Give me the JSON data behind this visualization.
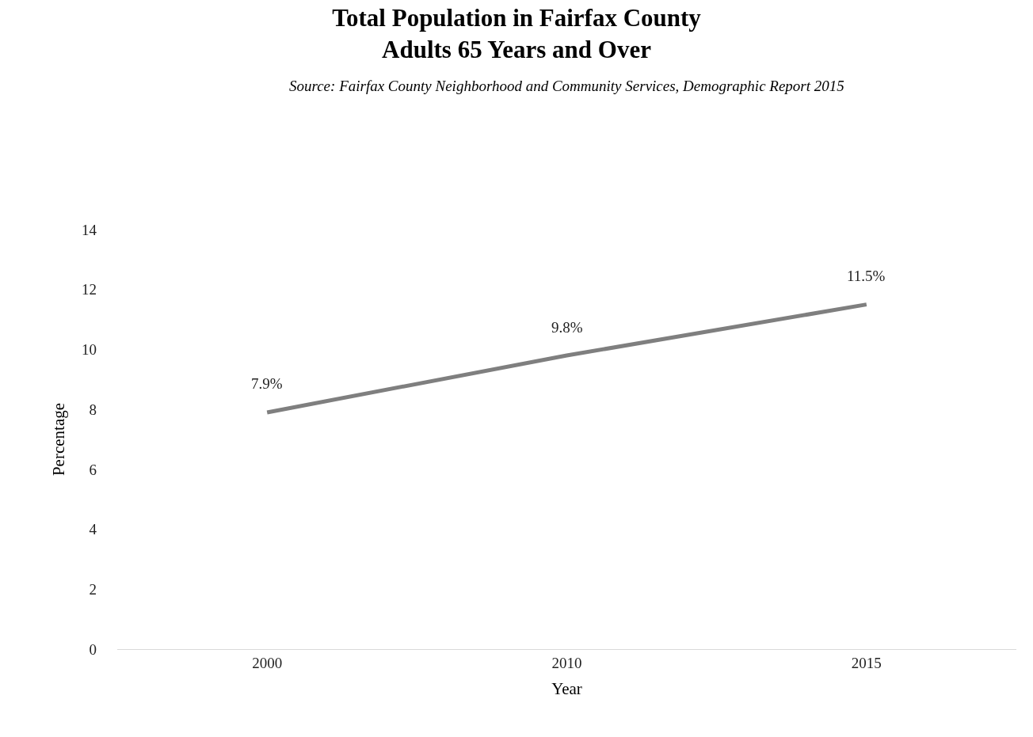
{
  "chart_data": {
    "type": "line",
    "title": "Total Population in Fairfax County\nAdults 65 Years and Over",
    "subtitle": "Source: Fairfax County Neighborhood and Community Services, Demographic Report 2015",
    "xlabel": "Year",
    "ylabel": "Percentage",
    "categories": [
      "2000",
      "2010",
      "2015"
    ],
    "series": [
      {
        "color": "#7f7f7f",
        "values": [
          7.9,
          9.8,
          11.5
        ],
        "value_labels": [
          "7.9%",
          "9.8%",
          "11.5%"
        ]
      }
    ],
    "ylim": [
      0,
      14
    ],
    "yticks": [
      0,
      2,
      4,
      6,
      8,
      10,
      12,
      14
    ],
    "marker": "none",
    "line_style": "solid"
  }
}
